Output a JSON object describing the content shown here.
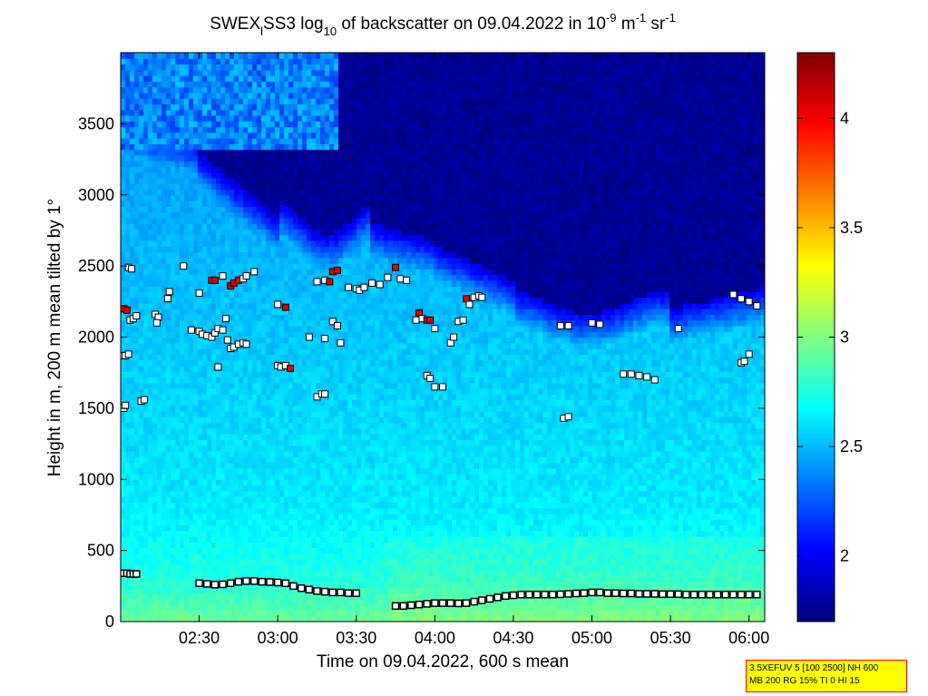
{
  "title": {
    "prefix": "SWEX",
    "sub_l": "l",
    "name": "SS3 log",
    "sub_10": "10",
    "mid": " of backscatter on 09.04.2022 in 10",
    "exp1": "-9",
    "unit_m": " m",
    "exp2": "-1",
    "unit_sr": " sr",
    "exp3": "-1"
  },
  "info_box": {
    "line1": "3.5XEFUV 5 [100 2500] NH 600",
    "line2": "MB 200 RG 15% TI 0 HI 15"
  },
  "chart_data": {
    "type": "heatmap",
    "title": "SWEX_lSS3 log10 of backscatter on 09.04.2022 in 10^-9 m^-1 sr^-1",
    "xlabel": "Time on 09.04.2022, 600 s mean",
    "ylabel": "Height in m, 200 m mean tilted by 1°",
    "x_range_hours": [
      2.0,
      6.1
    ],
    "ylim": [
      0,
      4000
    ],
    "x_ticks": [
      {
        "v": 2.5,
        "label": "02:30"
      },
      {
        "v": 3.0,
        "label": "03:00"
      },
      {
        "v": 3.5,
        "label": "03:30"
      },
      {
        "v": 4.0,
        "label": "04:00"
      },
      {
        "v": 4.5,
        "label": "04:30"
      },
      {
        "v": 5.0,
        "label": "05:00"
      },
      {
        "v": 5.5,
        "label": "05:30"
      },
      {
        "v": 6.0,
        "label": "06:00"
      }
    ],
    "y_ticks": [
      {
        "v": 0,
        "label": "0"
      },
      {
        "v": 500,
        "label": "500"
      },
      {
        "v": 1000,
        "label": "1000"
      },
      {
        "v": 1500,
        "label": "1500"
      },
      {
        "v": 2000,
        "label": "2000"
      },
      {
        "v": 2500,
        "label": "2500"
      },
      {
        "v": 3000,
        "label": "3000"
      },
      {
        "v": 3500,
        "label": "3500"
      }
    ],
    "colorbar": {
      "range": [
        1.7,
        4.3
      ],
      "colormap": "jet",
      "ticks": [
        {
          "v": 2.0,
          "label": "2"
        },
        {
          "v": 2.5,
          "label": "2.5"
        },
        {
          "v": 3.0,
          "label": "3"
        },
        {
          "v": 3.5,
          "label": "3.5"
        },
        {
          "v": 4.0,
          "label": "4"
        }
      ]
    },
    "surface_layer_markers": [
      [
        2.02,
        340
      ],
      [
        2.04,
        340
      ],
      [
        2.06,
        335
      ],
      [
        2.08,
        335
      ],
      [
        2.1,
        335
      ],
      [
        2.5,
        270
      ],
      [
        2.55,
        265
      ],
      [
        2.6,
        260
      ],
      [
        2.65,
        262
      ],
      [
        2.7,
        270
      ],
      [
        2.75,
        280
      ],
      [
        2.8,
        285
      ],
      [
        2.85,
        285
      ],
      [
        2.9,
        280
      ],
      [
        2.95,
        278
      ],
      [
        3.0,
        275
      ],
      [
        3.05,
        270
      ],
      [
        3.1,
        250
      ],
      [
        3.15,
        235
      ],
      [
        3.2,
        225
      ],
      [
        3.25,
        215
      ],
      [
        3.3,
        210
      ],
      [
        3.35,
        205
      ],
      [
        3.4,
        205
      ],
      [
        3.45,
        200
      ],
      [
        3.5,
        200
      ],
      [
        3.75,
        110
      ],
      [
        3.8,
        110
      ],
      [
        3.85,
        115
      ],
      [
        3.9,
        120
      ],
      [
        3.95,
        125
      ],
      [
        4.0,
        130
      ],
      [
        4.05,
        130
      ],
      [
        4.1,
        130
      ],
      [
        4.15,
        128
      ],
      [
        4.2,
        130
      ],
      [
        4.25,
        140
      ],
      [
        4.3,
        150
      ],
      [
        4.35,
        160
      ],
      [
        4.4,
        170
      ],
      [
        4.45,
        180
      ],
      [
        4.5,
        185
      ],
      [
        4.55,
        190
      ],
      [
        4.6,
        190
      ],
      [
        4.65,
        190
      ],
      [
        4.7,
        190
      ],
      [
        4.75,
        190
      ],
      [
        4.8,
        192
      ],
      [
        4.85,
        195
      ],
      [
        4.9,
        198
      ],
      [
        4.95,
        200
      ],
      [
        5.0,
        205
      ],
      [
        5.05,
        205
      ],
      [
        5.1,
        200
      ],
      [
        5.15,
        200
      ],
      [
        5.2,
        198
      ],
      [
        5.25,
        198
      ],
      [
        5.3,
        195
      ],
      [
        5.35,
        195
      ],
      [
        5.4,
        195
      ],
      [
        5.45,
        193
      ],
      [
        5.5,
        193
      ],
      [
        5.55,
        193
      ],
      [
        5.6,
        190
      ],
      [
        5.65,
        190
      ],
      [
        5.7,
        190
      ],
      [
        5.75,
        190
      ],
      [
        5.8,
        190
      ],
      [
        5.85,
        190
      ],
      [
        5.9,
        190
      ],
      [
        5.95,
        190
      ],
      [
        6.0,
        190
      ],
      [
        6.05,
        190
      ]
    ],
    "cloud_markers": [
      [
        2.02,
        1870,
        "w"
      ],
      [
        2.03,
        1870,
        "w"
      ],
      [
        2.05,
        1880,
        "w"
      ],
      [
        2.02,
        2200,
        "r"
      ],
      [
        2.04,
        2190,
        "r"
      ],
      [
        2.06,
        2120,
        "w"
      ],
      [
        2.08,
        2130,
        "w"
      ],
      [
        2.1,
        2150,
        "w"
      ],
      [
        2.05,
        2490,
        "w"
      ],
      [
        2.07,
        2480,
        "w"
      ],
      [
        2.02,
        1500,
        "w"
      ],
      [
        2.03,
        1520,
        "w"
      ],
      [
        2.13,
        1550,
        "w"
      ],
      [
        2.15,
        1560,
        "w"
      ],
      [
        2.22,
        2160,
        "w"
      ],
      [
        2.24,
        2140,
        "w"
      ],
      [
        2.23,
        2100,
        "w"
      ],
      [
        2.3,
        2270,
        "w"
      ],
      [
        2.31,
        2320,
        "w"
      ],
      [
        2.4,
        2500,
        "w"
      ],
      [
        2.5,
        2310,
        "w"
      ],
      [
        2.45,
        2050,
        "w"
      ],
      [
        2.5,
        2040,
        "w"
      ],
      [
        2.52,
        2020,
        "w"
      ],
      [
        2.55,
        2010,
        "w"
      ],
      [
        2.58,
        2000,
        "w"
      ],
      [
        2.6,
        2030,
        "w"
      ],
      [
        2.62,
        2060,
        "w"
      ],
      [
        2.65,
        2050,
        "w"
      ],
      [
        2.67,
        2130,
        "w"
      ],
      [
        2.58,
        2400,
        "r"
      ],
      [
        2.6,
        2400,
        "r"
      ],
      [
        2.65,
        2430,
        "w"
      ],
      [
        2.7,
        2360,
        "r"
      ],
      [
        2.72,
        2380,
        "r"
      ],
      [
        2.75,
        2400,
        "r"
      ],
      [
        2.78,
        2410,
        "w"
      ],
      [
        2.8,
        2430,
        "w"
      ],
      [
        2.85,
        2460,
        "w"
      ],
      [
        2.68,
        1980,
        "w"
      ],
      [
        2.7,
        1920,
        "w"
      ],
      [
        2.72,
        1930,
        "w"
      ],
      [
        2.75,
        1950,
        "w"
      ],
      [
        2.78,
        1960,
        "w"
      ],
      [
        2.8,
        1950,
        "w"
      ],
      [
        2.62,
        1790,
        "w"
      ],
      [
        3.0,
        1800,
        "w"
      ],
      [
        3.02,
        1790,
        "w"
      ],
      [
        3.05,
        1800,
        "w"
      ],
      [
        3.08,
        1780,
        "r"
      ],
      [
        3.0,
        2230,
        "w"
      ],
      [
        3.05,
        2210,
        "r"
      ],
      [
        3.2,
        2000,
        "w"
      ],
      [
        3.25,
        1580,
        "w"
      ],
      [
        3.28,
        1600,
        "w"
      ],
      [
        3.3,
        1600,
        "w"
      ],
      [
        3.3,
        1990,
        "w"
      ],
      [
        3.35,
        2110,
        "w"
      ],
      [
        3.38,
        2080,
        "w"
      ],
      [
        3.4,
        1960,
        "w"
      ],
      [
        3.25,
        2390,
        "w"
      ],
      [
        3.3,
        2400,
        "w"
      ],
      [
        3.35,
        2460,
        "r"
      ],
      [
        3.38,
        2470,
        "r"
      ],
      [
        3.33,
        2390,
        "r"
      ],
      [
        3.45,
        2350,
        "w"
      ],
      [
        3.5,
        2340,
        "w"
      ],
      [
        3.52,
        2330,
        "w"
      ],
      [
        3.55,
        2350,
        "w"
      ],
      [
        3.6,
        2380,
        "w"
      ],
      [
        3.65,
        2370,
        "w"
      ],
      [
        3.7,
        2420,
        "w"
      ],
      [
        3.75,
        2490,
        "r"
      ],
      [
        3.78,
        2410,
        "w"
      ],
      [
        3.82,
        2400,
        "w"
      ],
      [
        3.88,
        2120,
        "w"
      ],
      [
        3.9,
        2170,
        "r"
      ],
      [
        3.92,
        2130,
        "w"
      ],
      [
        3.95,
        2120,
        "r"
      ],
      [
        3.97,
        2120,
        "r"
      ],
      [
        4.0,
        2060,
        "w"
      ],
      [
        3.95,
        1730,
        "w"
      ],
      [
        3.97,
        1710,
        "w"
      ],
      [
        4.0,
        1650,
        "w"
      ],
      [
        4.05,
        1650,
        "w"
      ],
      [
        4.1,
        1960,
        "w"
      ],
      [
        4.12,
        2000,
        "w"
      ],
      [
        4.15,
        2110,
        "w"
      ],
      [
        4.18,
        2120,
        "w"
      ],
      [
        4.2,
        2270,
        "r"
      ],
      [
        4.22,
        2230,
        "w"
      ],
      [
        4.25,
        2280,
        "w"
      ],
      [
        4.28,
        2290,
        "w"
      ],
      [
        4.3,
        2280,
        "w"
      ],
      [
        4.8,
        2080,
        "w"
      ],
      [
        4.85,
        2080,
        "w"
      ],
      [
        4.82,
        1430,
        "w"
      ],
      [
        4.85,
        1440,
        "w"
      ],
      [
        5.0,
        2100,
        "w"
      ],
      [
        5.05,
        2090,
        "w"
      ],
      [
        5.2,
        1740,
        "w"
      ],
      [
        5.25,
        1740,
        "w"
      ],
      [
        5.3,
        1730,
        "w"
      ],
      [
        5.35,
        1720,
        "w"
      ],
      [
        5.4,
        1700,
        "w"
      ],
      [
        5.55,
        2060,
        "w"
      ],
      [
        5.9,
        2300,
        "w"
      ],
      [
        5.95,
        2270,
        "w"
      ],
      [
        6.0,
        2250,
        "w"
      ],
      [
        6.05,
        2220,
        "w"
      ],
      [
        5.95,
        1820,
        "w"
      ],
      [
        5.97,
        1830,
        "w"
      ],
      [
        6.0,
        1880,
        "w"
      ]
    ]
  }
}
